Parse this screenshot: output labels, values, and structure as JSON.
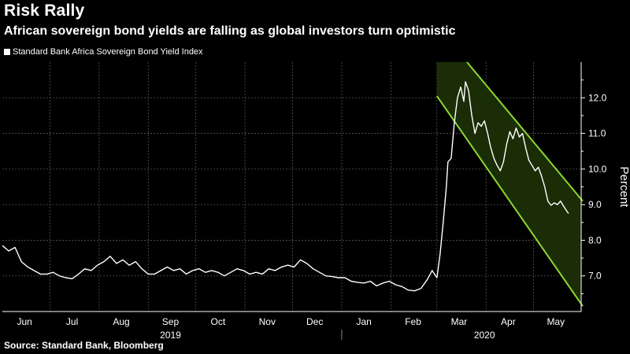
{
  "header": {
    "title": "Risk Rally",
    "subtitle": "African sovereign bond yields are falling as global investors turn optimistic"
  },
  "footer": {
    "source": "Source: Standard Bank, Bloomberg"
  },
  "colors": {
    "background": "#000000",
    "line": "#ffffff",
    "channel_line": "#8ed631",
    "channel_fill": "#1b2d06",
    "grid": "#555555"
  },
  "chart_data": {
    "type": "line",
    "title": "Risk Rally",
    "subtitle": "African sovereign bond yields are falling as global investors turn optimistic",
    "ylabel": "Percent",
    "ylim": [
      6.0,
      13.0
    ],
    "yticks": [
      7.0,
      8.0,
      9.0,
      10.0,
      11.0,
      12.0
    ],
    "ytick_labels": [
      "7.0",
      "8.0",
      "9.0",
      "10.0",
      "11.0",
      "12.0"
    ],
    "xlim": [
      "2019-06-01",
      "2020-05-31"
    ],
    "month_labels": [
      {
        "label": "Jun",
        "date": "2019-06-15"
      },
      {
        "label": "Jul",
        "date": "2019-07-15"
      },
      {
        "label": "Aug",
        "date": "2019-08-15"
      },
      {
        "label": "Sep",
        "date": "2019-09-15"
      },
      {
        "label": "Oct",
        "date": "2019-10-15"
      },
      {
        "label": "Nov",
        "date": "2019-11-15"
      },
      {
        "label": "Dec",
        "date": "2019-12-15"
      },
      {
        "label": "Jan",
        "date": "2020-01-15"
      },
      {
        "label": "Feb",
        "date": "2020-02-15"
      },
      {
        "label": "Mar",
        "date": "2020-03-15"
      },
      {
        "label": "Apr",
        "date": "2020-04-15"
      },
      {
        "label": "May",
        "date": "2020-05-15"
      }
    ],
    "year_labels": [
      {
        "label": "2019",
        "date": "2019-09-15"
      },
      {
        "label": "2020",
        "date": "2020-03-31"
      }
    ],
    "year_divider_date": "2020-01-01",
    "grid": true,
    "legend_position": "top-left",
    "series": [
      {
        "name": "Standard Bank Africa Sovereign Bond Yield Index",
        "color": "#ffffff",
        "points": [
          [
            "2019-06-01",
            7.85
          ],
          [
            "2019-06-05",
            7.7
          ],
          [
            "2019-06-09",
            7.8
          ],
          [
            "2019-06-13",
            7.4
          ],
          [
            "2019-06-17",
            7.25
          ],
          [
            "2019-06-21",
            7.15
          ],
          [
            "2019-06-25",
            7.05
          ],
          [
            "2019-06-29",
            7.05
          ],
          [
            "2019-07-03",
            7.1
          ],
          [
            "2019-07-07",
            7.0
          ],
          [
            "2019-07-11",
            6.95
          ],
          [
            "2019-07-15",
            6.92
          ],
          [
            "2019-07-19",
            7.05
          ],
          [
            "2019-07-23",
            7.2
          ],
          [
            "2019-07-27",
            7.15
          ],
          [
            "2019-07-31",
            7.3
          ],
          [
            "2019-08-04",
            7.4
          ],
          [
            "2019-08-08",
            7.55
          ],
          [
            "2019-08-12",
            7.35
          ],
          [
            "2019-08-16",
            7.45
          ],
          [
            "2019-08-20",
            7.3
          ],
          [
            "2019-08-24",
            7.4
          ],
          [
            "2019-08-28",
            7.2
          ],
          [
            "2019-09-01",
            7.05
          ],
          [
            "2019-09-05",
            7.05
          ],
          [
            "2019-09-09",
            7.15
          ],
          [
            "2019-09-13",
            7.25
          ],
          [
            "2019-09-17",
            7.15
          ],
          [
            "2019-09-21",
            7.2
          ],
          [
            "2019-09-25",
            7.05
          ],
          [
            "2019-09-29",
            7.15
          ],
          [
            "2019-10-03",
            7.2
          ],
          [
            "2019-10-07",
            7.1
          ],
          [
            "2019-10-11",
            7.15
          ],
          [
            "2019-10-15",
            7.1
          ],
          [
            "2019-10-19",
            7.0
          ],
          [
            "2019-10-23",
            7.1
          ],
          [
            "2019-10-27",
            7.2
          ],
          [
            "2019-10-31",
            7.15
          ],
          [
            "2019-11-04",
            7.05
          ],
          [
            "2019-11-08",
            7.1
          ],
          [
            "2019-11-12",
            7.05
          ],
          [
            "2019-11-16",
            7.2
          ],
          [
            "2019-11-20",
            7.15
          ],
          [
            "2019-11-24",
            7.25
          ],
          [
            "2019-11-28",
            7.3
          ],
          [
            "2019-12-02",
            7.25
          ],
          [
            "2019-12-06",
            7.45
          ],
          [
            "2019-12-10",
            7.35
          ],
          [
            "2019-12-14",
            7.2
          ],
          [
            "2019-12-18",
            7.1
          ],
          [
            "2019-12-22",
            7.0
          ],
          [
            "2019-12-26",
            6.98
          ],
          [
            "2019-12-30",
            6.95
          ],
          [
            "2020-01-03",
            6.95
          ],
          [
            "2020-01-07",
            6.85
          ],
          [
            "2020-01-11",
            6.82
          ],
          [
            "2020-01-15",
            6.8
          ],
          [
            "2020-01-19",
            6.85
          ],
          [
            "2020-01-23",
            6.72
          ],
          [
            "2020-01-27",
            6.8
          ],
          [
            "2020-01-31",
            6.85
          ],
          [
            "2020-02-04",
            6.75
          ],
          [
            "2020-02-08",
            6.7
          ],
          [
            "2020-02-12",
            6.6
          ],
          [
            "2020-02-16",
            6.58
          ],
          [
            "2020-02-20",
            6.65
          ],
          [
            "2020-02-24",
            6.9
          ],
          [
            "2020-02-27",
            7.15
          ],
          [
            "2020-03-01",
            6.95
          ],
          [
            "2020-03-03",
            7.6
          ],
          [
            "2020-03-05",
            8.5
          ],
          [
            "2020-03-07",
            9.5
          ],
          [
            "2020-03-08",
            10.2
          ],
          [
            "2020-03-10",
            10.3
          ],
          [
            "2020-03-12",
            11.3
          ],
          [
            "2020-03-14",
            12.0
          ],
          [
            "2020-03-16",
            12.3
          ],
          [
            "2020-03-18",
            11.9
          ],
          [
            "2020-03-19",
            12.45
          ],
          [
            "2020-03-21",
            12.2
          ],
          [
            "2020-03-23",
            11.5
          ],
          [
            "2020-03-25",
            11.0
          ],
          [
            "2020-03-27",
            11.3
          ],
          [
            "2020-03-29",
            11.2
          ],
          [
            "2020-03-31",
            11.35
          ],
          [
            "2020-04-02",
            11.0
          ],
          [
            "2020-04-04",
            10.6
          ],
          [
            "2020-04-06",
            10.3
          ],
          [
            "2020-04-08",
            10.1
          ],
          [
            "2020-04-10",
            9.95
          ],
          [
            "2020-04-12",
            10.2
          ],
          [
            "2020-04-14",
            10.7
          ],
          [
            "2020-04-16",
            11.05
          ],
          [
            "2020-04-18",
            10.85
          ],
          [
            "2020-04-20",
            11.15
          ],
          [
            "2020-04-22",
            10.9
          ],
          [
            "2020-04-24",
            11.0
          ],
          [
            "2020-04-26",
            10.6
          ],
          [
            "2020-04-28",
            10.25
          ],
          [
            "2020-04-30",
            10.1
          ],
          [
            "2020-05-02",
            9.95
          ],
          [
            "2020-05-04",
            10.05
          ],
          [
            "2020-05-06",
            9.8
          ],
          [
            "2020-05-08",
            9.5
          ],
          [
            "2020-05-10",
            9.1
          ],
          [
            "2020-05-12",
            8.98
          ],
          [
            "2020-05-14",
            9.05
          ],
          [
            "2020-05-16",
            9.0
          ],
          [
            "2020-05-18",
            9.1
          ],
          [
            "2020-05-20",
            8.95
          ],
          [
            "2020-05-23",
            8.75
          ]
        ]
      }
    ],
    "channel": {
      "color": "#8ed631",
      "upper": [
        [
          "2020-03-20",
          13.0
        ],
        [
          "2020-06-01",
          9.1
        ]
      ],
      "lower": [
        [
          "2020-03-01",
          12.05
        ],
        [
          "2020-06-01",
          6.15
        ]
      ],
      "shade_box_start": "2020-03-01",
      "shade_box_top": 13.0
    }
  }
}
